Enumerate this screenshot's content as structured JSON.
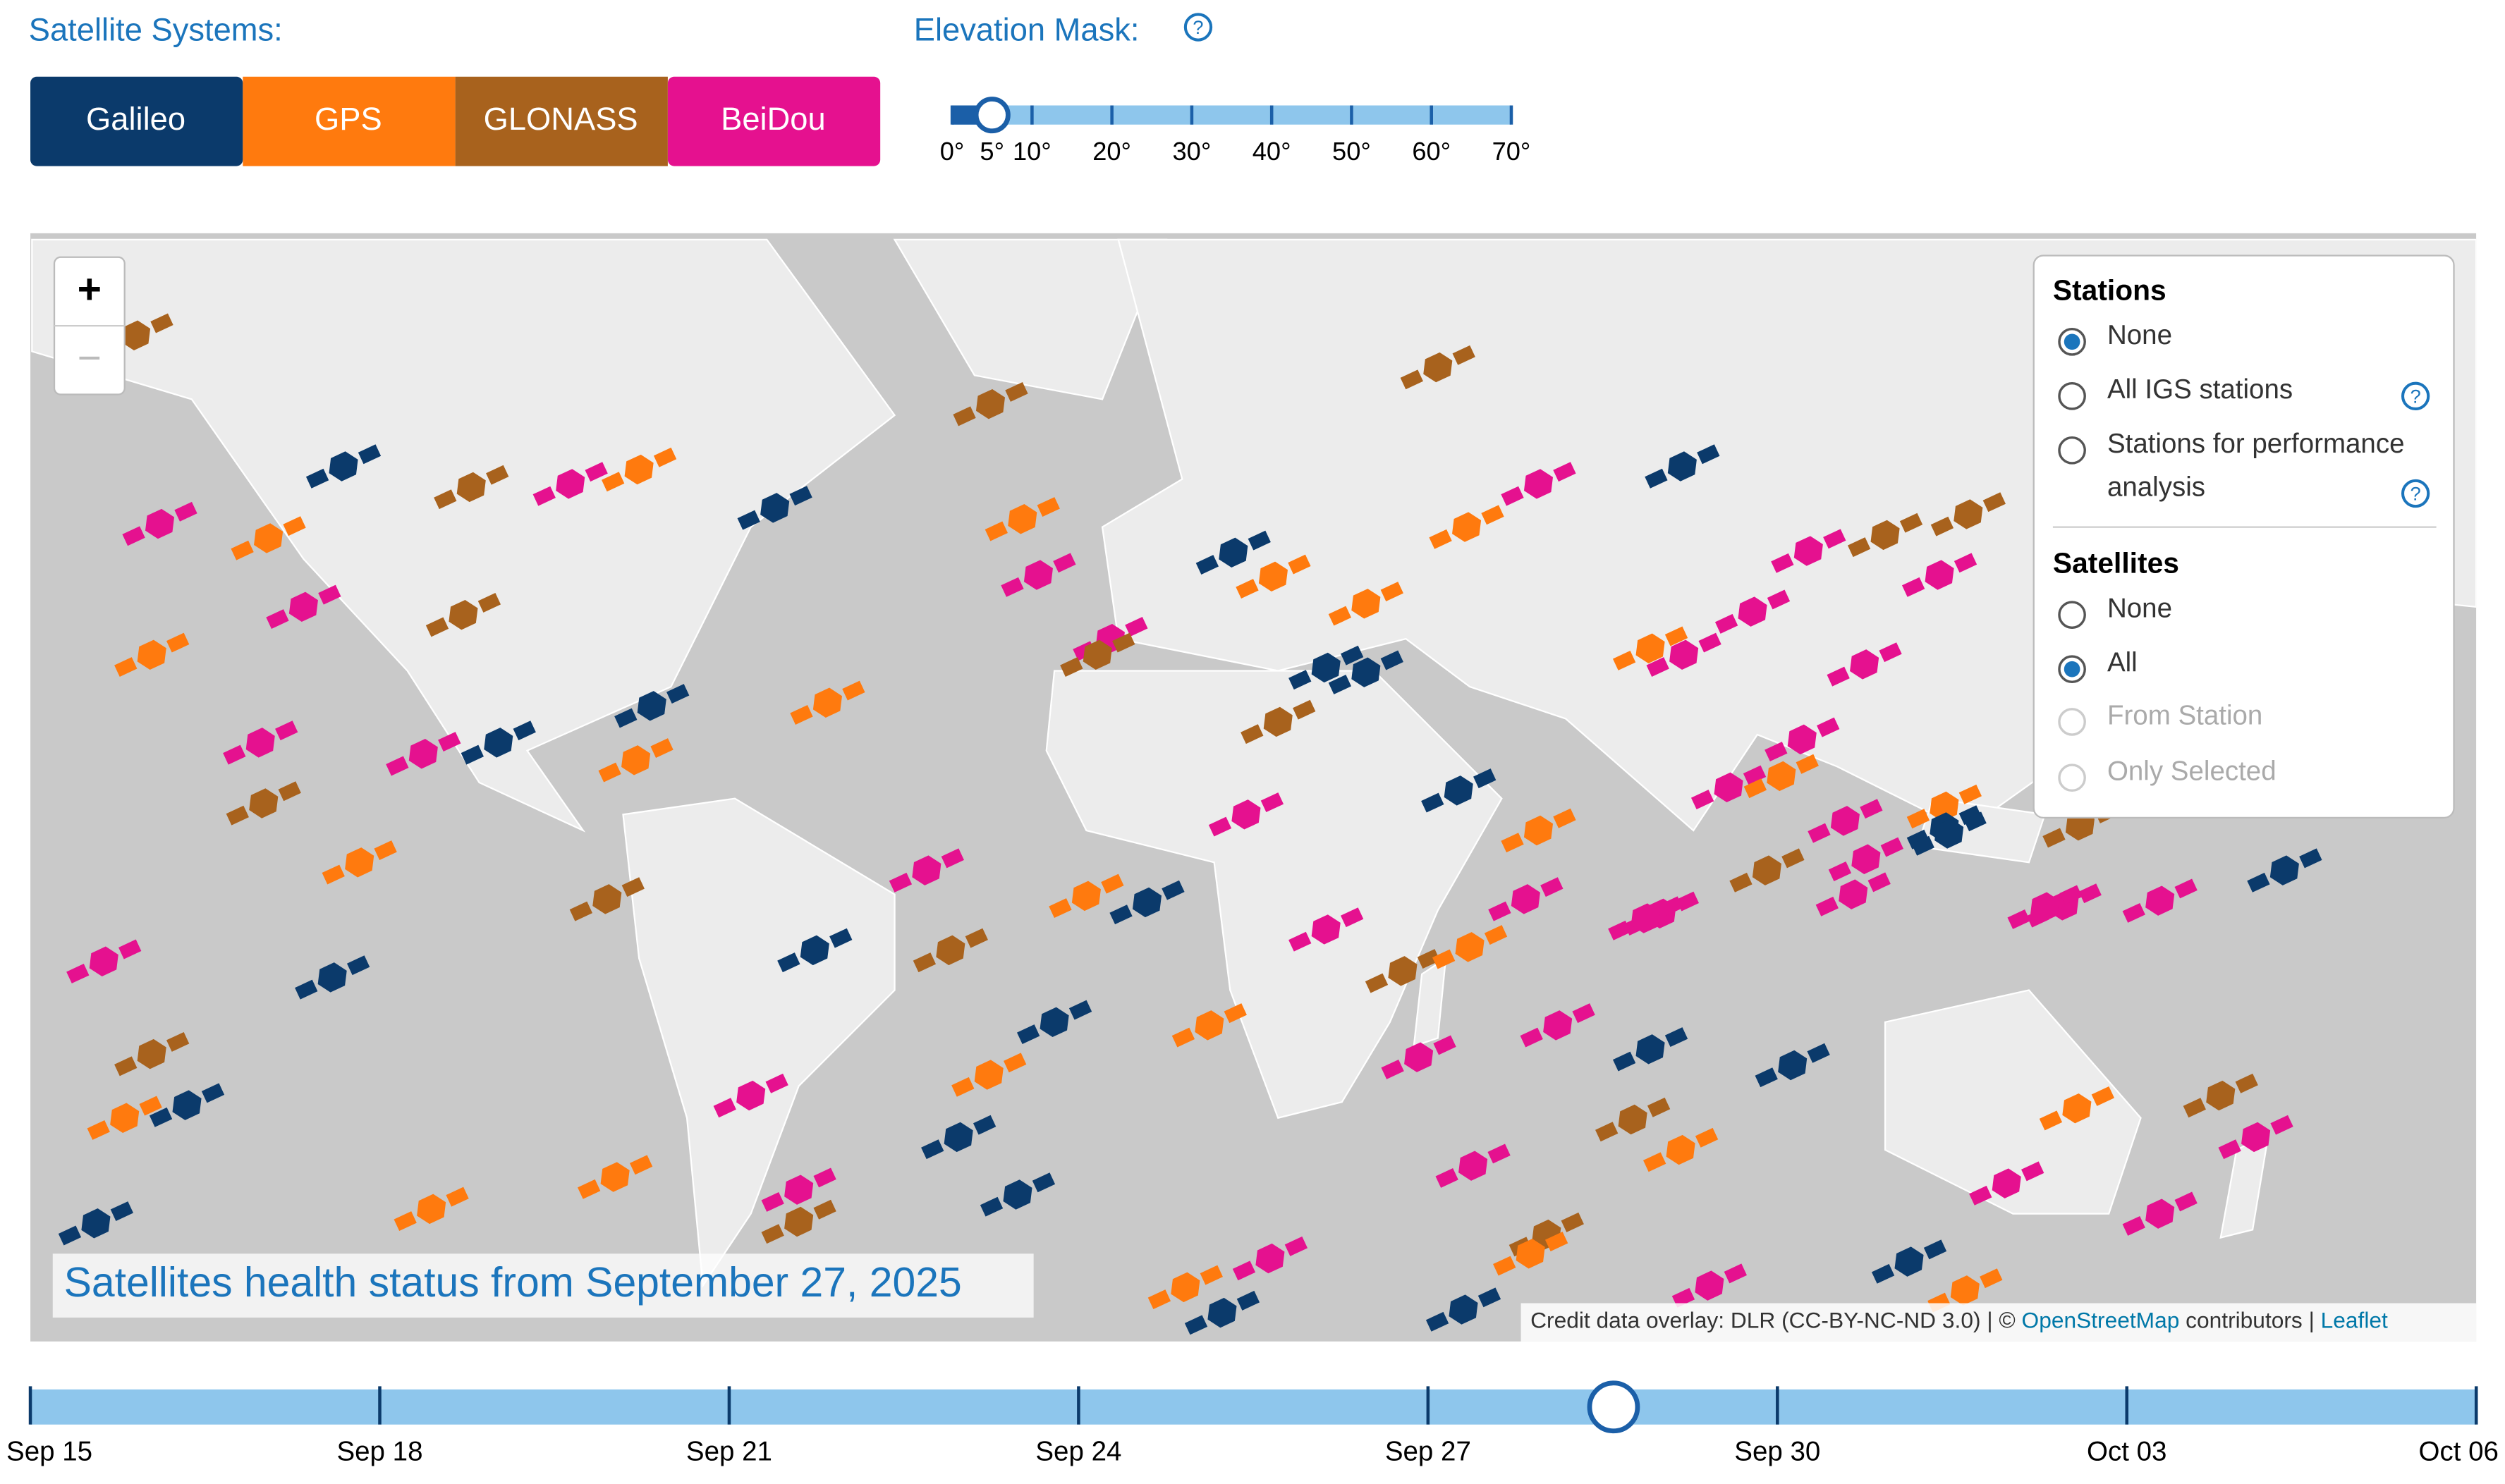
{
  "satellite_systems": {
    "label": "Satellite Systems:",
    "buttons": [
      {
        "label": "Galileo",
        "color": "#0b3a6b"
      },
      {
        "label": "GPS",
        "color": "#ff7a0e"
      },
      {
        "label": "GLONASS",
        "color": "#a8621d"
      },
      {
        "label": "BeiDou",
        "color": "#e5118f"
      }
    ]
  },
  "elevation_mask": {
    "label": "Elevation Mask:",
    "help": "?",
    "value": 5,
    "ticks": [
      {
        "value": 0,
        "label": "0°"
      },
      {
        "value": 5,
        "label": "5°"
      },
      {
        "value": 10,
        "label": "10°"
      },
      {
        "value": 20,
        "label": "20°"
      },
      {
        "value": 30,
        "label": "30°"
      },
      {
        "value": 40,
        "label": "40°"
      },
      {
        "value": 50,
        "label": "50°"
      },
      {
        "value": 60,
        "label": "60°"
      },
      {
        "value": 70,
        "label": "70°"
      }
    ]
  },
  "map": {
    "zoom_in": "+",
    "zoom_out": "−",
    "overlay_title": "Satellites health status from September 27, 2025",
    "attribution": {
      "credit": "Credit data overlay: DLR (CC-BY-NC-ND 3.0) | © ",
      "osm": "OpenStreetMap",
      "contributors": " contributors | ",
      "leaflet": "Leaflet"
    }
  },
  "layers": {
    "stations": {
      "title": "Stations",
      "options": [
        "None",
        "All IGS stations",
        "Stations for performance",
        "analysis"
      ],
      "help": "?"
    },
    "satellites": {
      "title": "Satellites",
      "options": [
        "None",
        "All",
        "From Station",
        "Only Selected"
      ]
    }
  },
  "timeline": {
    "ticks": [
      "Sep 15",
      "Sep 18",
      "Sep 21",
      "Sep 24",
      "Sep 27",
      "Sep 30",
      "Oct 03",
      "Oct 06"
    ]
  }
}
